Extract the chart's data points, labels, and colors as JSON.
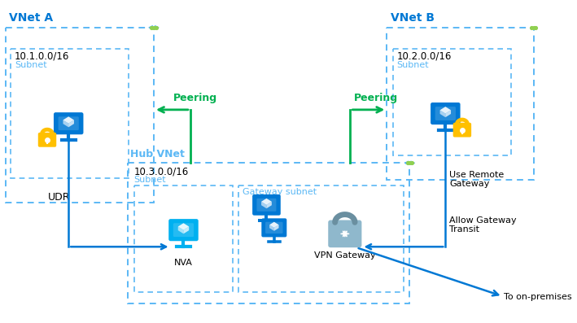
{
  "bg_color": "#ffffff",
  "dblue": "#0078D4",
  "lblue": "#00B0F0",
  "cyan_dash": "#5BB8F5",
  "green": "#00B050",
  "gold": "#FFC000",
  "gray_vpn": "#909090",
  "gray_vpn_body": "#B0B8C0",
  "text_black": "#000000",
  "text_blue_title": "#0078D4",
  "text_cyan": "#5BB8F5",
  "text_green": "#00B050",
  "vnet_a_label": "VNet A",
  "vnet_b_label": "VNet B",
  "hub_vnet_label": "Hub VNet",
  "subnet_label": "Subnet",
  "gateway_subnet_label": "Gateway subnet",
  "ip_a": "10.1.0.0/16",
  "ip_b": "10.2.0.0/16",
  "ip_hub": "10.3.0.0/16",
  "peering_label": "Peering",
  "udr_label": "UDR",
  "nva_label": "NVA",
  "vpn_label": "VPN Gateway",
  "allow_gw_label": "Allow Gateway\nTransit",
  "use_remote_label": "Use Remote\nGateway",
  "on_premises_label": "To on-premises"
}
